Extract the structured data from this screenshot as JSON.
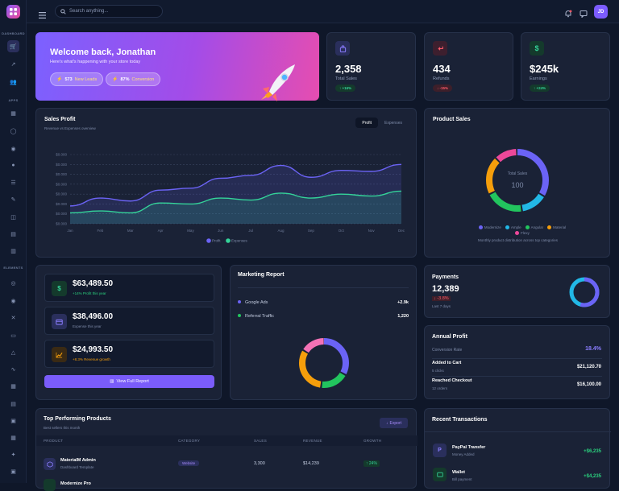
{
  "sidebar": {
    "sections": [
      "DASHBOARD",
      "APPS",
      "ELEMENTS"
    ],
    "icons": [
      "cart-icon",
      "chart-icon",
      "users-icon",
      "calendar-icon",
      "chat-icon",
      "contacts-icon",
      "user-circle-icon",
      "notes-icon",
      "edit-icon",
      "shop-icon",
      "invoice-icon",
      "kanban-icon",
      "badge-icon",
      "target-icon",
      "tools-icon",
      "card-icon",
      "alert-icon",
      "pulse-icon",
      "grid-icon",
      "table-icon",
      "layout-icon",
      "form-icon",
      "sparkle-icon",
      "terminal-icon"
    ]
  },
  "header": {
    "search_placeholder": "Search anything...",
    "avatar_initials": "JD"
  },
  "welcome": {
    "title": "Welcome back, Jonathan",
    "subtitle": "Here's what's happening with your store today",
    "leads_value": "573",
    "leads_label": "New Leads",
    "conversion_value": "87%",
    "conversion_label": "Conversion"
  },
  "stats": [
    {
      "value": "2,358",
      "label": "Total Sales",
      "badge": "↑ +16%",
      "color": "#6b5cff"
    },
    {
      "value": "434",
      "label": "Refunds",
      "badge": "↓ -15%",
      "color": "#ff4d6a"
    },
    {
      "value": "$245k",
      "label": "Earnings",
      "badge": "↑ +24%",
      "color": "#22c55e"
    }
  ],
  "sales_profit": {
    "title": "Sales Profit",
    "subtitle": "Revenue vs Expenses overview",
    "tab_profit": "Profit",
    "tab_expenses": "Expenses"
  },
  "chart_data": {
    "type": "area",
    "title": "Sales Profit",
    "categories": [
      "Jan",
      "Feb",
      "Mar",
      "Apr",
      "May",
      "Jun",
      "Jul",
      "Aug",
      "Sep",
      "Oct",
      "Nov",
      "Dec"
    ],
    "y_ticks": [
      "$0.000",
      "$0.000",
      "$0.000",
      "$0.000",
      "$0.000",
      "$0.000",
      "$0.000",
      "$0.000"
    ],
    "ylim": [
      0,
      7
    ],
    "series": [
      {
        "name": "Profit",
        "color": "#6b63f5",
        "values": [
          1.8,
          2.6,
          2.3,
          3.4,
          3.6,
          4.6,
          4.9,
          5.9,
          4.7,
          5.4,
          5.3,
          6.0
        ]
      },
      {
        "name": "Expenses",
        "color": "#34d399",
        "values": [
          1.1,
          1.3,
          1.1,
          2.1,
          2.0,
          2.6,
          2.4,
          3.1,
          2.6,
          3.0,
          2.8,
          3.3
        ]
      }
    ],
    "legend_placement": "bottom-center"
  },
  "product_sales": {
    "title": "Product Sales",
    "center_label": "Total Sales",
    "center_value": "100",
    "legend": [
      {
        "name": "Modernize",
        "color": "#6b63f5"
      },
      {
        "name": "Ample",
        "color": "#22b8e6"
      },
      {
        "name": "Angular",
        "color": "#22c55e"
      },
      {
        "name": "Material",
        "color": "#f59e0b"
      },
      {
        "name": "Flexy",
        "color": "#ec4899"
      }
    ],
    "caption": "Monthly product distribution across top categories"
  },
  "finance": [
    {
      "value": "$63,489.50",
      "sub": "+14% Profit this year",
      "color": "#22c55e"
    },
    {
      "value": "$38,496.00",
      "sub": "Expense this year",
      "color": "#6b63f5"
    },
    {
      "value": "$24,993.50",
      "sub": "+8.3% Revenue growth",
      "color": "#f59e0b"
    }
  ],
  "finance_button": "View Full Report",
  "marketing": {
    "title": "Marketing Report",
    "rows": [
      {
        "name": "Google Ads",
        "value": "+2.9k",
        "color": "#6b63f5"
      },
      {
        "name": "Referral Traffic",
        "value": "1,220",
        "color": "#22c55e"
      }
    ]
  },
  "payments": {
    "title": "Payments",
    "value": "12,389",
    "change": "↓ -3.8%",
    "note": "Last 7 days"
  },
  "annual_profit": {
    "title": "Annual Profit",
    "rate_label": "Conversion Rate",
    "rate_value": "18.4%",
    "rows": [
      {
        "label": "Added to Cart",
        "sub": "5 clicks",
        "value": "$21,120.70"
      },
      {
        "label": "Reached Checkout",
        "sub": "12 orders",
        "value": "$16,100.00"
      }
    ]
  },
  "products": {
    "title": "Top Performing Products",
    "subtitle": "Best sellers this month",
    "export": "Export",
    "columns": [
      "PRODUCT",
      "CATEGORY",
      "SALES",
      "REVENUE",
      "GROWTH"
    ],
    "rows": [
      {
        "name": "MaterialM Admin",
        "sub": "Dashboard Template",
        "category": "Website",
        "sales": "3,300",
        "revenue": "$14,239",
        "growth": "↑ 24%"
      },
      {
        "name": "Modernize Pro",
        "sub": "",
        "category": "",
        "sales": "",
        "revenue": "",
        "growth": ""
      }
    ]
  },
  "transactions": {
    "title": "Recent Transactions",
    "rows": [
      {
        "name": "PayPal Transfer",
        "sub": "Money Added",
        "value": "+$6,235"
      },
      {
        "name": "Wallet",
        "sub": "Bill payment",
        "value": "+$4,235"
      }
    ]
  },
  "colors": {
    "accent": "#7c5cff",
    "bg": "#0f1729",
    "card": "#1a2236"
  }
}
